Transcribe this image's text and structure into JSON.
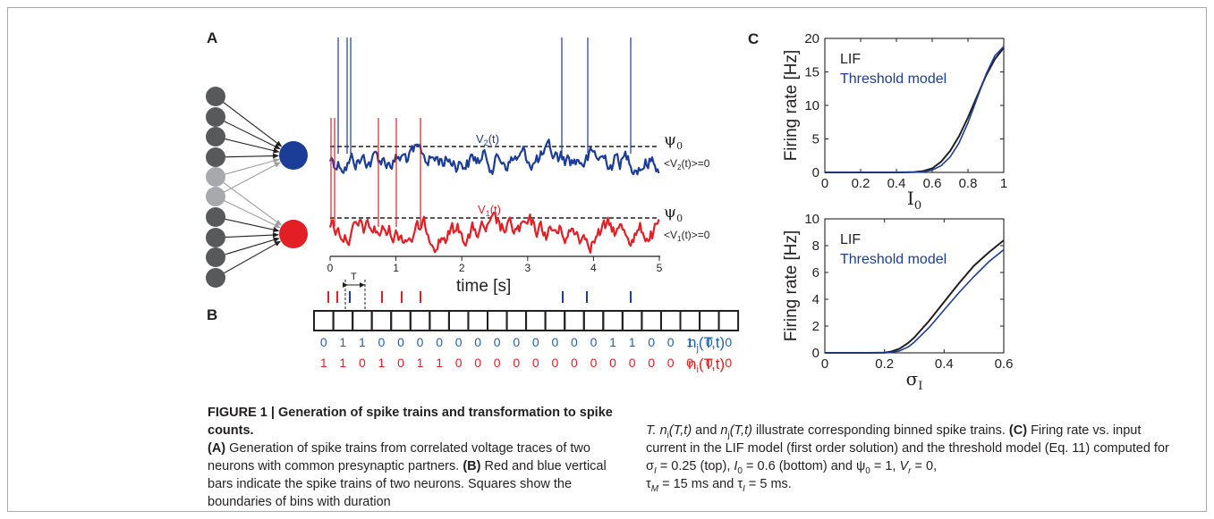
{
  "panels": {
    "a": "A",
    "b": "B",
    "c": "C"
  },
  "traces": {
    "v2_label": "V",
    "v2_sub": "2",
    "v2_t": "(t)",
    "v1_label": "V",
    "v1_sub": "1",
    "v1_t": "(t)",
    "psi": "ψ",
    "psi_sub": "0",
    "mean2": "<V",
    "mean2_sub": "2",
    "mean2_rest": "(t)>=0",
    "mean1": "<V",
    "mean1_sub": "1",
    "mean1_rest": "(t)>=0",
    "time_ticks": [
      "0",
      "1",
      "2",
      "3",
      "4",
      "5"
    ],
    "time_label": "time [s]",
    "red_color": "#e31e24",
    "blue_color": "#1b3d98"
  },
  "bins": {
    "T_label": "T",
    "nj_values": [
      "0",
      "1",
      "1",
      "0",
      "0",
      "0",
      "0",
      "0",
      "0",
      "0",
      "0",
      "0",
      "0",
      "0",
      "0",
      "1",
      "1",
      "0",
      "0",
      "1",
      "0",
      "0"
    ],
    "ni_values": [
      "1",
      "1",
      "0",
      "1",
      "0",
      "1",
      "1",
      "0",
      "0",
      "0",
      "0",
      "0",
      "0",
      "0",
      "0",
      "0",
      "0",
      "0",
      "0",
      "0",
      "0",
      "0"
    ],
    "nj_label": "n",
    "nj_sub": "j",
    "nj_rest": "(T,t)",
    "ni_label": "n",
    "ni_sub": "i",
    "ni_rest": "(T,t)"
  },
  "chart_data": [
    {
      "type": "line",
      "ylabel": "Firing rate [Hz]",
      "xlabel": "I",
      "xlabel_sub": "0",
      "xlim": [
        0,
        1
      ],
      "ylim": [
        0,
        20
      ],
      "xticks": [
        "0",
        "0.2",
        "0.4",
        "0.6",
        "0.8",
        "1"
      ],
      "yticks": [
        "0",
        "5",
        "10",
        "15",
        "20"
      ],
      "x": [
        0,
        0.1,
        0.2,
        0.3,
        0.4,
        0.5,
        0.55,
        0.6,
        0.65,
        0.7,
        0.75,
        0.8,
        0.85,
        0.9,
        0.95,
        1.0
      ],
      "series": [
        {
          "name": "LIF",
          "color": "#231f20",
          "values": [
            0,
            0,
            0,
            0,
            0,
            0.05,
            0.2,
            0.6,
            1.6,
            3.2,
            5.4,
            8.2,
            11.3,
            14.4,
            16.9,
            18.6
          ]
        },
        {
          "name": "Threshold model",
          "color": "#1b3d98",
          "values": [
            0,
            0,
            0,
            0,
            0,
            0.02,
            0.1,
            0.35,
            1.0,
            2.3,
            4.4,
            7.4,
            11.0,
            14.6,
            17.4,
            18.8
          ]
        }
      ]
    },
    {
      "type": "line",
      "ylabel": "Firing rate [Hz]",
      "xlabel": "σ",
      "xlabel_sub": "I",
      "xlim": [
        0,
        0.6
      ],
      "ylim": [
        0,
        10
      ],
      "xticks": [
        "0",
        "0.2",
        "0.4",
        "0.6"
      ],
      "yticks": [
        "0",
        "2",
        "4",
        "6",
        "8",
        "10"
      ],
      "x": [
        0,
        0.1,
        0.15,
        0.2,
        0.22,
        0.25,
        0.28,
        0.3,
        0.35,
        0.4,
        0.45,
        0.5,
        0.55,
        0.6
      ],
      "series": [
        {
          "name": "LIF",
          "color": "#231f20",
          "values": [
            0,
            0,
            0,
            0.02,
            0.08,
            0.3,
            0.75,
            1.15,
            2.4,
            3.8,
            5.2,
            6.5,
            7.5,
            8.4
          ]
        },
        {
          "name": "Threshold model",
          "color": "#1b3d98",
          "values": [
            0,
            0,
            0,
            0.0,
            0.03,
            0.15,
            0.45,
            0.8,
            1.9,
            3.2,
            4.5,
            5.7,
            6.8,
            7.7
          ]
        }
      ]
    }
  ],
  "caption": {
    "title": "FIGURE 1 | Generation of spike trains and transformation to spike counts.",
    "a_tag": "(A)",
    "a_text": " Generation of spike trains from correlated voltage traces of two neurons with common presynaptic partners.",
    "b_tag": "(B)",
    "b_text": " Red and blue vertical bars indicate the spike trains of two neurons. Squares show the boundaries of bins with duration",
    "r_T": "T. ",
    "r_n1": "n",
    "r_n1_sub": "i",
    "r_n1_args": "(T,t)",
    "r_and": " and ",
    "r_n2": "n",
    "r_n2_sub": "j",
    "r_n2_args": "(T,t)",
    "r_illus": " illustrate corresponding binned spike trains. ",
    "c_tag": "(C)",
    "c_text1": " Firing rate vs. input current in the LIF model (first order solution) and the threshold model (Eq. 11) computed for ",
    "sigma": "σ",
    "sigma_sub": "I",
    "c_eq1": " = 0.25 (top), ",
    "i0": "I",
    "i0_sub": "0",
    "c_eq2": " = 0.6 (bottom) and ",
    "psi0": "ψ",
    "psi0_sub": "0",
    "c_eq3": " = 1, ",
    "vr": "V",
    "vr_sub": "r",
    "c_eq4": " = 0,",
    "taum": "τ",
    "taum_sub": "M",
    "c_eq5": " = 15 ms and ",
    "taui": "τ",
    "taui_sub": "I",
    "c_eq6": " = 5 ms."
  }
}
